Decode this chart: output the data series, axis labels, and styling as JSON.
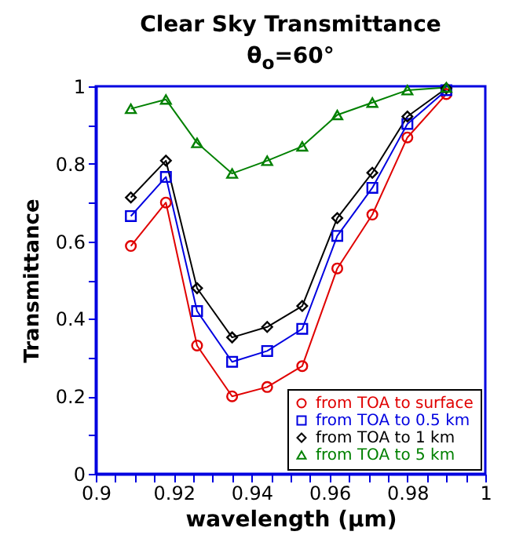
{
  "chart_data": {
    "type": "line",
    "title": "Clear Sky Transmittance",
    "subtitle": "θ$_{o}$=60°",
    "xlabel": "wavelength (μm)",
    "ylabel": "Transmittance",
    "x": [
      0.909,
      0.918,
      0.926,
      0.935,
      0.944,
      0.953,
      0.962,
      0.971,
      0.98,
      0.99
    ],
    "series": [
      {
        "name": "from TOA to surface",
        "color": "#e00000",
        "marker": "circle",
        "values": [
          0.588,
          0.7,
          0.331,
          0.2,
          0.224,
          0.278,
          0.53,
          0.669,
          0.868,
          0.98
        ]
      },
      {
        "name": "from TOA to 0.5 km",
        "color": "#0000e0",
        "marker": "square",
        "values": [
          0.665,
          0.766,
          0.42,
          0.289,
          0.317,
          0.374,
          0.614,
          0.738,
          0.903,
          0.99
        ]
      },
      {
        "name": "from TOA to 1 km",
        "color": "#000000",
        "marker": "diamond",
        "values": [
          0.713,
          0.808,
          0.479,
          0.352,
          0.379,
          0.433,
          0.66,
          0.777,
          0.922,
          0.995
        ]
      },
      {
        "name": "from TOA to 5 km",
        "color": "#008000",
        "marker": "triangle",
        "values": [
          0.942,
          0.966,
          0.854,
          0.775,
          0.808,
          0.845,
          0.926,
          0.958,
          0.99,
          0.997
        ]
      }
    ],
    "xlim": [
      0.9,
      1.0
    ],
    "ylim": [
      0,
      1
    ],
    "xticks": [
      0.9,
      {
        "value": 0.905,
        "label": null
      },
      {
        "value": 0.91,
        "label": null
      },
      {
        "value": 0.915,
        "label": null
      },
      0.92,
      {
        "value": 0.925,
        "label": null
      },
      {
        "value": 0.93,
        "label": null
      },
      {
        "value": 0.935,
        "label": null
      },
      0.94,
      {
        "value": 0.945,
        "label": null
      },
      {
        "value": 0.95,
        "label": null
      },
      {
        "value": 0.955,
        "label": null
      },
      0.96,
      {
        "value": 0.965,
        "label": null
      },
      {
        "value": 0.97,
        "label": null
      },
      {
        "value": 0.975,
        "label": null
      },
      0.98,
      {
        "value": 0.985,
        "label": null
      },
      {
        "value": 0.99,
        "label": null
      },
      {
        "value": 0.995,
        "label": null
      },
      {
        "value": 1,
        "label": "1"
      }
    ],
    "yticks": [
      {
        "value": 0,
        "label": "0"
      },
      {
        "value": 0.1,
        "label": null
      },
      0.2,
      {
        "value": 0.3,
        "label": null
      },
      0.4,
      {
        "value": 0.5,
        "label": null
      },
      0.6,
      {
        "value": 0.7,
        "label": null
      },
      0.8,
      {
        "value": 0.9,
        "label": null
      },
      {
        "value": 1,
        "label": "1"
      }
    ],
    "grid": false,
    "legend": "bottom right",
    "line_style": "solid"
  }
}
